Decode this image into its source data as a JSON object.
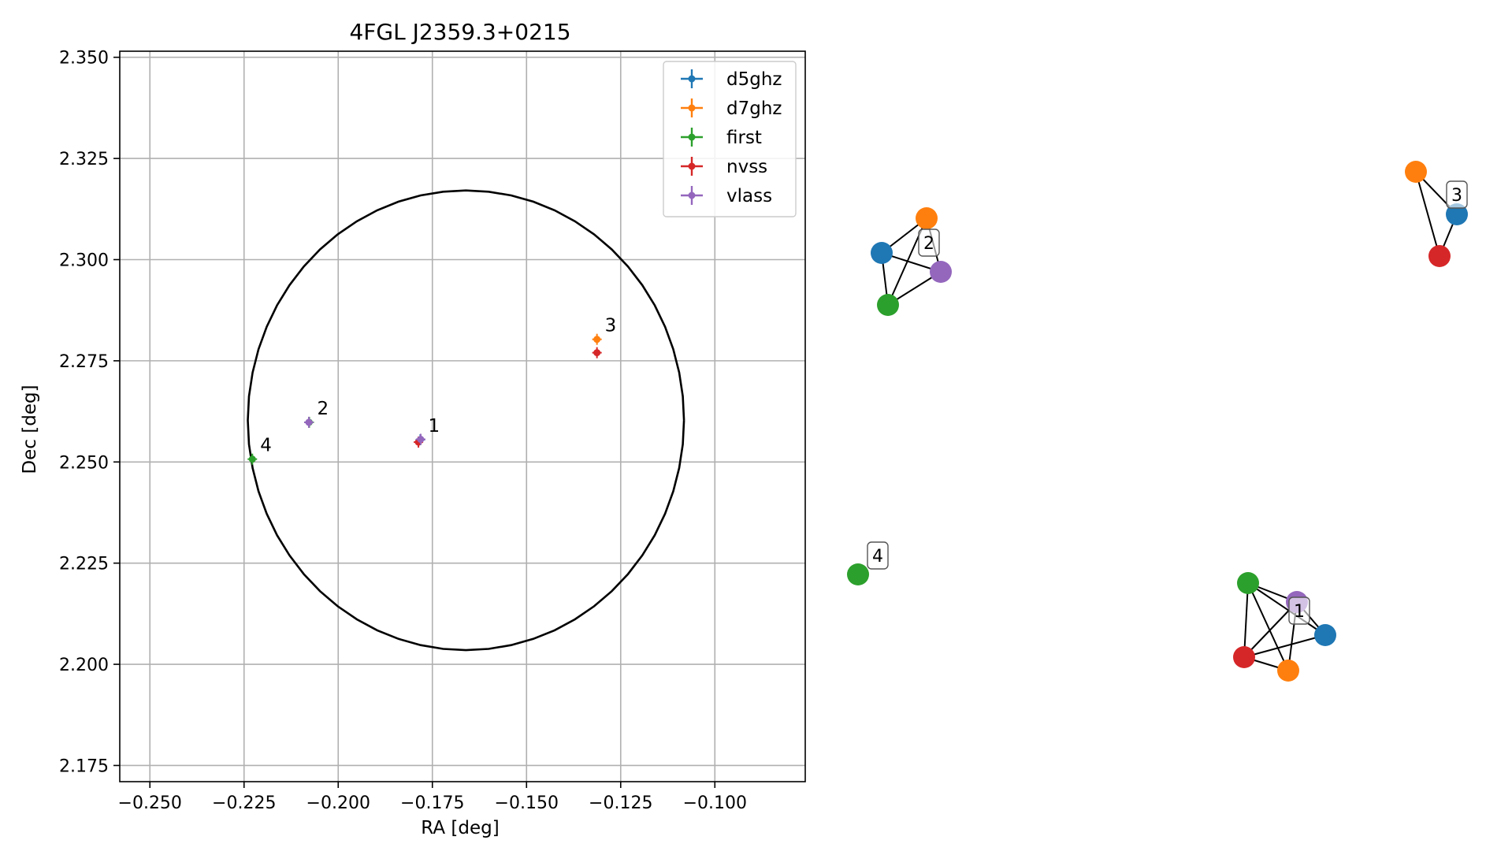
{
  "colors": {
    "d5ghz": "#1f77b4",
    "d7ghz": "#ff7f0e",
    "first": "#2ca02c",
    "nvss": "#d62728",
    "vlass": "#9467bd",
    "grid": "#b0b0b0",
    "edge": "#000000"
  },
  "chart_data": [
    {
      "type": "scatter",
      "title": "4FGL J2359.3+0215",
      "xlabel": "RA [deg]",
      "ylabel": "Dec [deg]",
      "xlim": [
        -0.258,
        -0.076
      ],
      "ylim": [
        2.171,
        2.3515
      ],
      "xticks": [
        -0.25,
        -0.225,
        -0.2,
        -0.175,
        -0.15,
        -0.125,
        -0.1
      ],
      "xtick_labels": [
        "−0.250",
        "−0.225",
        "−0.200",
        "−0.175",
        "−0.150",
        "−0.125",
        "−0.100"
      ],
      "yticks": [
        2.175,
        2.2,
        2.225,
        2.25,
        2.275,
        2.3,
        2.325,
        2.35
      ],
      "ytick_labels": [
        "2.175",
        "2.200",
        "2.225",
        "2.250",
        "2.275",
        "2.300",
        "2.325",
        "2.350"
      ],
      "grid": true,
      "legend_position": "top-right",
      "series": [
        {
          "name": "d5ghz",
          "points": [
            {
              "x": -0.1782,
              "y": 2.2555
            }
          ]
        },
        {
          "name": "d7ghz",
          "points": [
            {
              "x": -0.1313,
              "y": 2.2803
            }
          ]
        },
        {
          "name": "first",
          "points": [
            {
              "x": -0.2228,
              "y": 2.2507
            },
            {
              "x": -0.2077,
              "y": 2.2598
            }
          ]
        },
        {
          "name": "nvss",
          "points": [
            {
              "x": -0.1313,
              "y": 2.277
            },
            {
              "x": -0.1787,
              "y": 2.2549
            }
          ]
        },
        {
          "name": "vlass",
          "points": [
            {
              "x": -0.2078,
              "y": 2.2598
            },
            {
              "x": -0.1781,
              "y": 2.2556
            }
          ]
        }
      ],
      "region": {
        "type": "ellipse",
        "center_x": -0.1661,
        "center_y": 2.2603,
        "semi_x": 0.0579,
        "semi_y": 0.0568
      },
      "annotations": [
        {
          "text": "1",
          "x": -0.1782,
          "y": 2.2555
        },
        {
          "text": "2",
          "x": -0.2077,
          "y": 2.2598
        },
        {
          "text": "3",
          "x": -0.1313,
          "y": 2.2803
        },
        {
          "text": "4",
          "x": -0.2228,
          "y": 2.2507
        }
      ]
    },
    {
      "type": "network",
      "groups": [
        {
          "label": "2",
          "nodes": [
            "d5ghz",
            "d7ghz",
            "vlass",
            "first"
          ],
          "edges": [
            [
              "d5ghz",
              "d7ghz"
            ],
            [
              "d5ghz",
              "vlass"
            ],
            [
              "d5ghz",
              "first"
            ],
            [
              "d7ghz",
              "vlass"
            ],
            [
              "d7ghz",
              "first"
            ],
            [
              "vlass",
              "first"
            ]
          ]
        },
        {
          "label": "3",
          "nodes": [
            "d7ghz",
            "d5ghz",
            "nvss"
          ],
          "edges": [
            [
              "d7ghz",
              "d5ghz"
            ],
            [
              "d7ghz",
              "nvss"
            ],
            [
              "d5ghz",
              "nvss"
            ]
          ]
        },
        {
          "label": "4",
          "nodes": [
            "first"
          ],
          "edges": []
        },
        {
          "label": "1",
          "nodes": [
            "first",
            "vlass",
            "d5ghz",
            "nvss",
            "d7ghz"
          ],
          "edges": [
            [
              "first",
              "vlass"
            ],
            [
              "first",
              "d5ghz"
            ],
            [
              "first",
              "nvss"
            ],
            [
              "first",
              "d7ghz"
            ],
            [
              "vlass",
              "nvss"
            ],
            [
              "vlass",
              "d7ghz"
            ],
            [
              "vlass",
              "d5ghz"
            ],
            [
              "d5ghz",
              "nvss"
            ],
            [
              "nvss",
              "d7ghz"
            ]
          ]
        }
      ]
    }
  ]
}
